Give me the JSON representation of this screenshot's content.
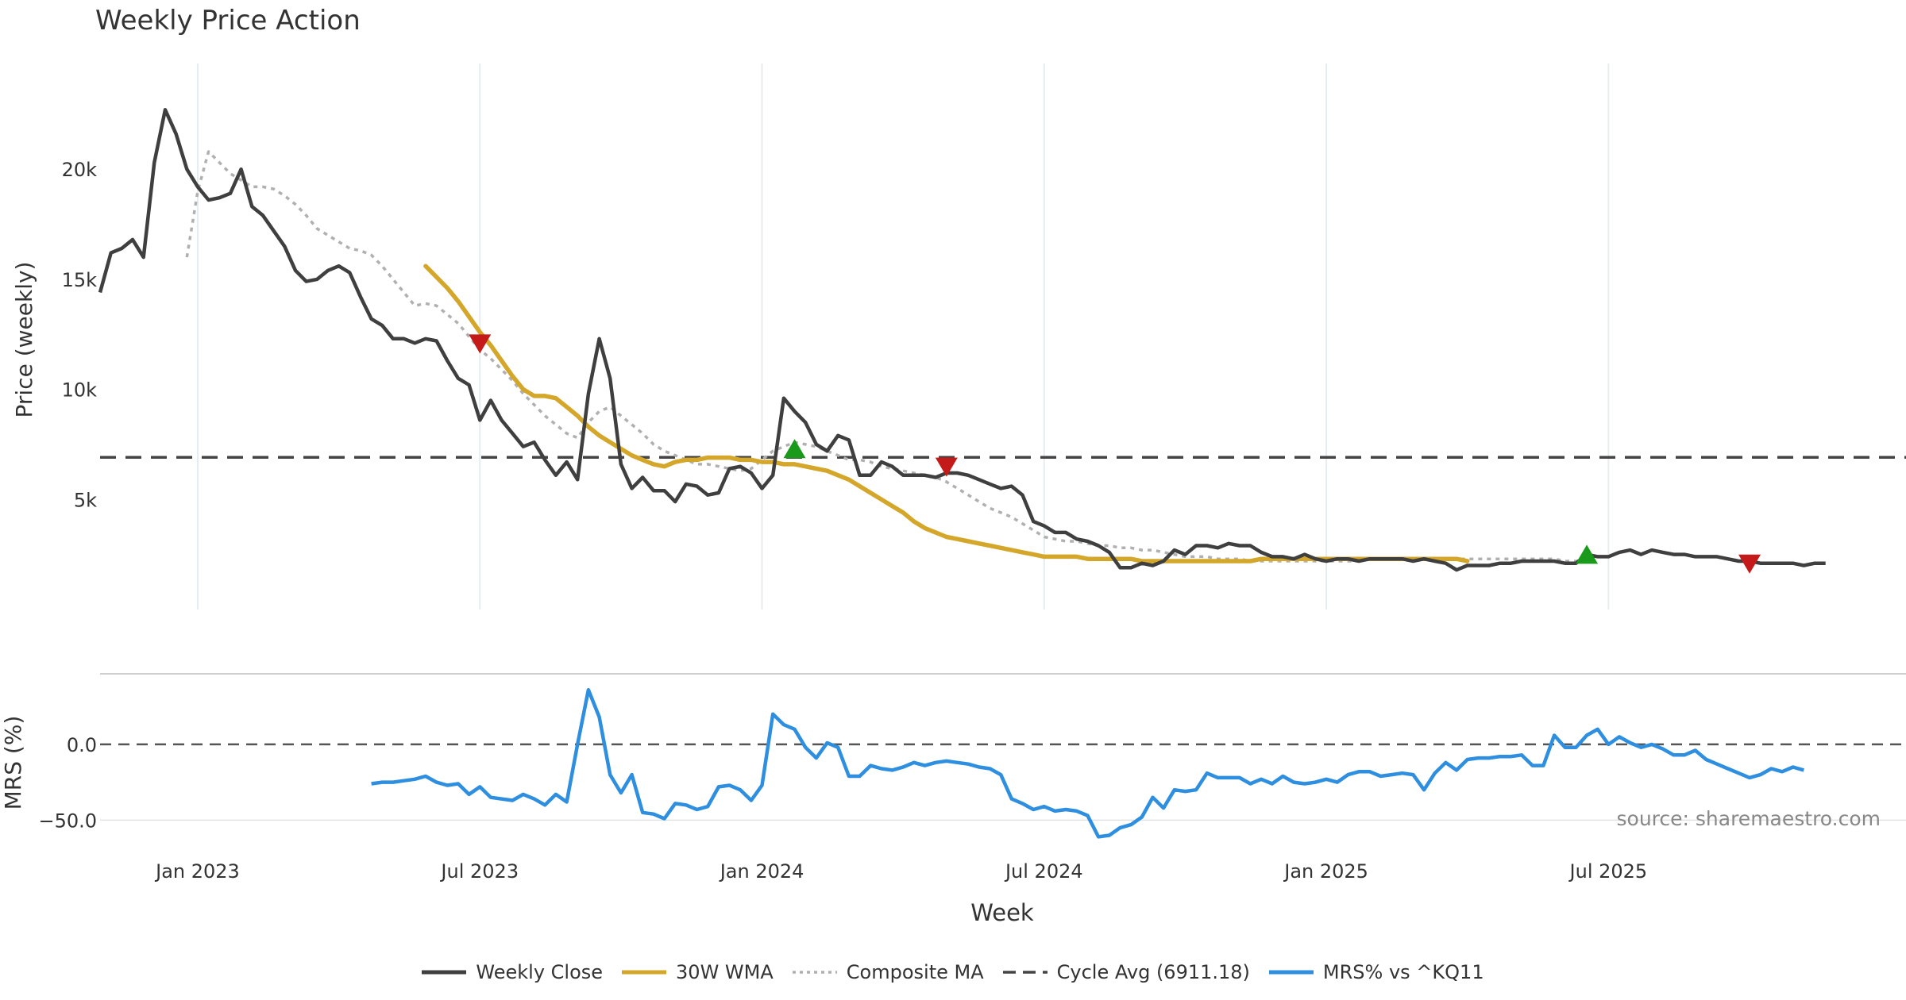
{
  "colors": {
    "close": "#3f3f3f",
    "wma": "#d4a62a",
    "composite": "#b0b0b0",
    "cycle": "#444444",
    "mrs": "#2e8ee0",
    "buy": "#1a9a1a",
    "sell": "#c41a1a",
    "grid": "#e6ecef"
  },
  "chart_data": {
    "type": "line",
    "title": "Weekly Price Action",
    "xlabel": "Week",
    "source": "source: sharemaestro.com",
    "x_tick_labels": [
      "Jan 2023",
      "Jul 2023",
      "Jan 2024",
      "Jul 2024",
      "Jan 2025",
      "Jul 2025"
    ],
    "x_tick_weeks": [
      5,
      31,
      57,
      83,
      109,
      135
    ],
    "x_range": [
      -4,
      157
    ],
    "price_panel": {
      "ylabel": "Price (weekly)",
      "ylim": [
        0,
        24800
      ],
      "ticks": [
        5000,
        10000,
        15000,
        20000
      ],
      "tick_labels": [
        "5k",
        "10k",
        "15k",
        "20k"
      ],
      "cycle_avg": 6911.18
    },
    "mrs_panel": {
      "ylabel": "MRS (%)",
      "ylim": [
        -65,
        45
      ],
      "ticks": [
        0,
        -50
      ],
      "tick_labels": [
        "0.0",
        "−50.0"
      ]
    },
    "series": [
      {
        "name": "Weekly Close",
        "x_start": -4,
        "values": [
          14400,
          16200,
          16400,
          16800,
          16000,
          20300,
          22700,
          21600,
          20000,
          19200,
          18600,
          18700,
          18900,
          20000,
          18300,
          17900,
          17200,
          16500,
          15400,
          14900,
          15000,
          15400,
          15600,
          15300,
          14200,
          13200,
          12900,
          12300,
          12300,
          12100,
          12300,
          12200,
          11300,
          10500,
          10200,
          8600,
          9500,
          8600,
          8000,
          7400,
          7600,
          6800,
          6100,
          6700,
          5900,
          9800,
          12300,
          10500,
          6600,
          5500,
          6000,
          5400,
          5400,
          4900,
          5700,
          5600,
          5200,
          5300,
          6400,
          6500,
          6200,
          5500,
          6100,
          9600,
          9000,
          8500,
          7500,
          7200,
          7900,
          7700,
          6100,
          6100,
          6700,
          6500,
          6100,
          6100,
          6100,
          6000,
          6200,
          6200,
          6100,
          5900,
          5700,
          5500,
          5600,
          5200,
          4000,
          3800,
          3500,
          3500,
          3200,
          3100,
          2900,
          2600,
          1900,
          1900,
          2100,
          2000,
          2200,
          2700,
          2500,
          2900,
          2900,
          2800,
          3000,
          2900,
          2900,
          2600,
          2400,
          2400,
          2300,
          2500,
          2300,
          2200,
          2300,
          2300,
          2200,
          2300,
          2300,
          2300,
          2300,
          2200,
          2300,
          2200,
          2100,
          1800,
          2000,
          2000,
          2000,
          2100,
          2100,
          2200,
          2200,
          2200,
          2200,
          2100,
          2100,
          2500,
          2400,
          2400,
          2600,
          2700,
          2500,
          2700,
          2600,
          2500,
          2500,
          2400,
          2400,
          2400,
          2300,
          2200,
          2200,
          2100,
          2100,
          2100,
          2100,
          2000,
          2100,
          2100
        ]
      },
      {
        "name": "30W WMA",
        "x_start": 26,
        "values": [
          15600,
          15100,
          14600,
          14000,
          13300,
          12600,
          12000,
          11300,
          10600,
          10000,
          9700,
          9700,
          9600,
          9200,
          8800,
          8300,
          7900,
          7600,
          7300,
          7000,
          6800,
          6600,
          6500,
          6700,
          6800,
          6800,
          6900,
          6900,
          6900,
          6800,
          6800,
          6700,
          6700,
          6600,
          6600,
          6500,
          6400,
          6300,
          6100,
          5900,
          5600,
          5300,
          5000,
          4700,
          4400,
          4000,
          3700,
          3500,
          3300,
          3200,
          3100,
          3000,
          2900,
          2800,
          2700,
          2600,
          2500,
          2400,
          2400,
          2400,
          2400,
          2300,
          2300,
          2300,
          2300,
          2300,
          2200,
          2200,
          2200,
          2200,
          2200,
          2200,
          2200,
          2200,
          2200,
          2200,
          2200,
          2300,
          2300,
          2300,
          2300,
          2300,
          2300,
          2300,
          2300,
          2300,
          2300,
          2300,
          2300,
          2300,
          2300,
          2300,
          2300,
          2300,
          2300,
          2300,
          2200
        ]
      },
      {
        "name": "Composite MA",
        "x_start": 4,
        "values": [
          16000,
          19000,
          20800,
          20300,
          19800,
          19500,
          19200,
          19200,
          19100,
          18800,
          18400,
          17900,
          17300,
          17000,
          16700,
          16400,
          16300,
          16100,
          15600,
          15000,
          14400,
          13800,
          13900,
          13800,
          13400,
          13000,
          12400,
          11800,
          11400,
          10900,
          10400,
          9800,
          9300,
          8800,
          8400,
          8000,
          7800,
          8500,
          9000,
          9200,
          8800,
          8400,
          8000,
          7500,
          7200,
          7000,
          6800,
          6600,
          6600,
          6500,
          6400,
          6300,
          6400,
          6800,
          7200,
          7400,
          7600,
          7500,
          7400,
          7200,
          7000,
          6800,
          6800,
          6700,
          6500,
          6400,
          6300,
          6200,
          6100,
          6000,
          5800,
          5500,
          5200,
          4900,
          4600,
          4400,
          4200,
          3900,
          3600,
          3300,
          3200,
          3100,
          3100,
          3000,
          2900,
          2900,
          2800,
          2800,
          2700,
          2700,
          2600,
          2500,
          2400,
          2400,
          2400,
          2300,
          2300,
          2300,
          2200,
          2200,
          2200,
          2200,
          2200,
          2200,
          2200,
          2200,
          2200,
          2200,
          2200,
          2300,
          2300,
          2300,
          2300,
          2300,
          2300,
          2300,
          2300,
          2300,
          2300,
          2300,
          2300,
          2300,
          2300,
          2300,
          2300,
          2300,
          2300,
          2200,
          2200,
          2200
        ]
      },
      {
        "name": "Cycle Avg (6911.18)",
        "value": 6911.18
      },
      {
        "name": "MRS% vs ^KQ11",
        "x_start": 21,
        "values": [
          -26,
          -25,
          -25,
          -24,
          -23,
          -21,
          -25,
          -27,
          -26,
          -33,
          -28,
          -35,
          -36,
          -37,
          -33,
          -36,
          -40,
          -33,
          -38,
          0,
          36,
          18,
          -20,
          -32,
          -20,
          -45,
          -46,
          -49,
          -39,
          -40,
          -43,
          -41,
          -28,
          -27,
          -30,
          -37,
          -27,
          20,
          13,
          10,
          -2,
          -9,
          1,
          -2,
          -21,
          -21,
          -14,
          -16,
          -17,
          -15,
          -12,
          -14,
          -12,
          -11,
          -12,
          -13,
          -15,
          -16,
          -20,
          -36,
          -39,
          -43,
          -41,
          -44,
          -43,
          -44,
          -47,
          -61,
          -60,
          -55,
          -53,
          -48,
          -35,
          -42,
          -30,
          -31,
          -30,
          -19,
          -22,
          -22,
          -22,
          -26,
          -23,
          -26,
          -21,
          -25,
          -26,
          -25,
          -23,
          -25,
          -20,
          -18,
          -18,
          -21,
          -20,
          -19,
          -20,
          -30,
          -19,
          -12,
          -17,
          -10,
          -9,
          -9,
          -8,
          -8,
          -7,
          -14,
          -14,
          6,
          -2,
          -2,
          6,
          10,
          0,
          5,
          1,
          -2,
          0,
          -3,
          -7,
          -7,
          -4,
          -10,
          -13,
          -16,
          -19,
          -22,
          -20,
          -16,
          -18,
          -15,
          -17
        ]
      }
    ],
    "signals": [
      {
        "type": "sell",
        "week": 31,
        "price": 12100
      },
      {
        "type": "buy",
        "week": 60,
        "price": 7200
      },
      {
        "type": "sell",
        "week": 74,
        "price": 6500
      },
      {
        "type": "buy",
        "week": 133,
        "price": 2400
      },
      {
        "type": "sell",
        "week": 148,
        "price": 2100
      }
    ]
  },
  "legend": [
    {
      "key": "close",
      "label": "Weekly Close",
      "style": "solid"
    },
    {
      "key": "wma",
      "label": "30W WMA",
      "style": "solid"
    },
    {
      "key": "composite",
      "label": "Composite MA",
      "style": "dotted"
    },
    {
      "key": "cycle",
      "label": "Cycle Avg (6911.18)",
      "style": "dashed"
    },
    {
      "key": "mrs",
      "label": "MRS% vs ^KQ11",
      "style": "solid"
    }
  ]
}
